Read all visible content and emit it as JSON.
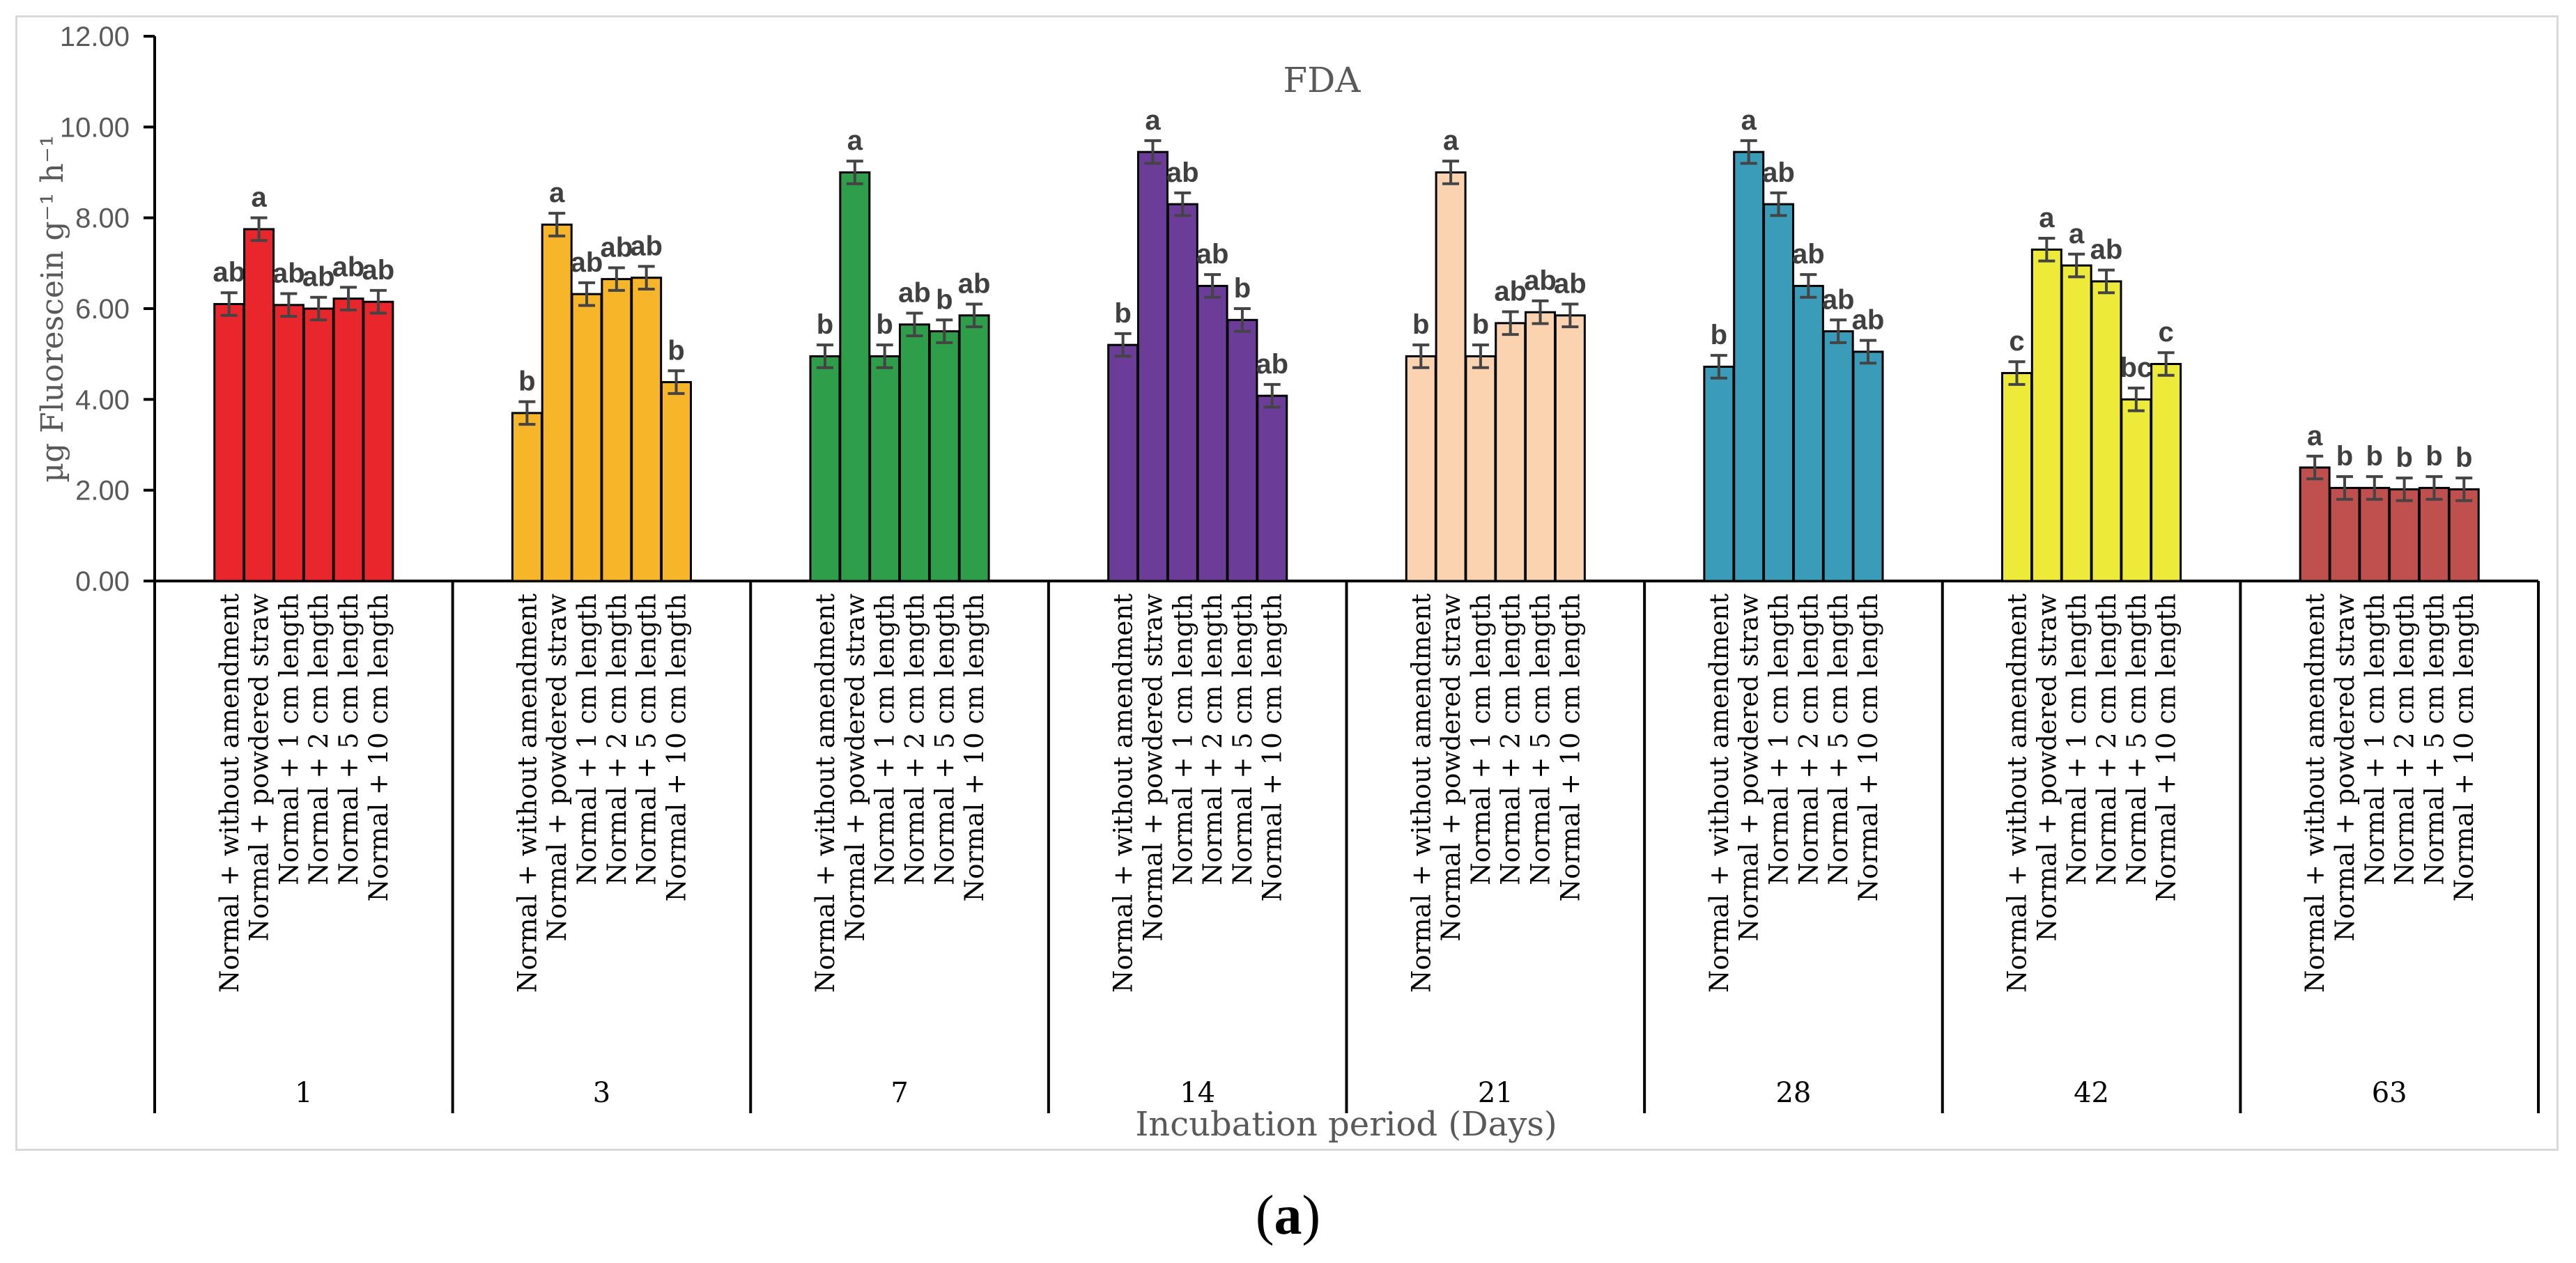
{
  "caption": {
    "open": "(",
    "letter": "a",
    "close": ")"
  },
  "chart_data": {
    "type": "bar",
    "title": "FDA",
    "xlabel": "Incubation period (Days)",
    "ylabel": "µg Fluorescein g⁻¹ h⁻¹",
    "ylim": [
      0,
      12
    ],
    "yticks": [
      "0.00",
      "2.00",
      "4.00",
      "6.00",
      "8.00",
      "10.00",
      "12.00"
    ],
    "treatments": [
      "Normal + without amendment",
      "Normal + powdered straw",
      "Normal + 1 cm length",
      "Normal + 2 cm length",
      "Normal + 5 cm length",
      "Normal + 10 cm length"
    ],
    "groups": [
      {
        "day": "1",
        "color": "#e8262b",
        "values": [
          6.1,
          7.75,
          6.08,
          6.0,
          6.22,
          6.15
        ],
        "errors": [
          0.25,
          0.25,
          0.25,
          0.25,
          0.25,
          0.25
        ],
        "letters": [
          "ab",
          "a",
          "ab",
          "ab",
          "ab",
          "ab"
        ]
      },
      {
        "day": "3",
        "color": "#f7b52a",
        "values": [
          3.7,
          7.85,
          6.32,
          6.65,
          6.68,
          4.38
        ],
        "errors": [
          0.25,
          0.25,
          0.25,
          0.25,
          0.25,
          0.25
        ],
        "letters": [
          "b",
          "a",
          "ab",
          "ab",
          "ab",
          "b"
        ]
      },
      {
        "day": "7",
        "color": "#2f9e4b",
        "values": [
          4.95,
          9.0,
          4.95,
          5.65,
          5.5,
          5.85
        ],
        "errors": [
          0.25,
          0.25,
          0.25,
          0.25,
          0.25,
          0.25
        ],
        "letters": [
          "b",
          "a",
          "b",
          "ab",
          "b",
          "ab"
        ]
      },
      {
        "day": "14",
        "color": "#6b3d99",
        "values": [
          5.2,
          9.45,
          8.3,
          6.5,
          5.75,
          4.08
        ],
        "errors": [
          0.25,
          0.25,
          0.25,
          0.25,
          0.25,
          0.25
        ],
        "letters": [
          "b",
          "a",
          "ab",
          "ab",
          "b",
          "ab"
        ]
      },
      {
        "day": "21",
        "color": "#fcd3b1",
        "values": [
          4.95,
          9.0,
          4.95,
          5.68,
          5.92,
          5.85
        ],
        "errors": [
          0.25,
          0.25,
          0.25,
          0.25,
          0.25,
          0.25
        ],
        "letters": [
          "b",
          "a",
          "b",
          "ab",
          "ab",
          "ab"
        ]
      },
      {
        "day": "28",
        "color": "#3a9cb8",
        "values": [
          4.72,
          9.45,
          8.3,
          6.5,
          5.5,
          5.05
        ],
        "errors": [
          0.25,
          0.25,
          0.25,
          0.25,
          0.25,
          0.25
        ],
        "letters": [
          "b",
          "a",
          "ab",
          "ab",
          "ab",
          "ab"
        ]
      },
      {
        "day": "42",
        "color": "#eeea3a",
        "values": [
          4.58,
          7.3,
          6.95,
          6.6,
          4.0,
          4.78
        ],
        "errors": [
          0.25,
          0.25,
          0.25,
          0.25,
          0.25,
          0.25
        ],
        "letters": [
          "c",
          "a",
          "a",
          "ab",
          "bc",
          "c"
        ]
      },
      {
        "day": "63",
        "color": "#c0504d",
        "values": [
          2.5,
          2.05,
          2.05,
          2.02,
          2.05,
          2.02
        ],
        "errors": [
          0.25,
          0.25,
          0.25,
          0.25,
          0.25,
          0.25
        ],
        "letters": [
          "a",
          "b",
          "b",
          "b",
          "b",
          "b"
        ]
      }
    ]
  }
}
